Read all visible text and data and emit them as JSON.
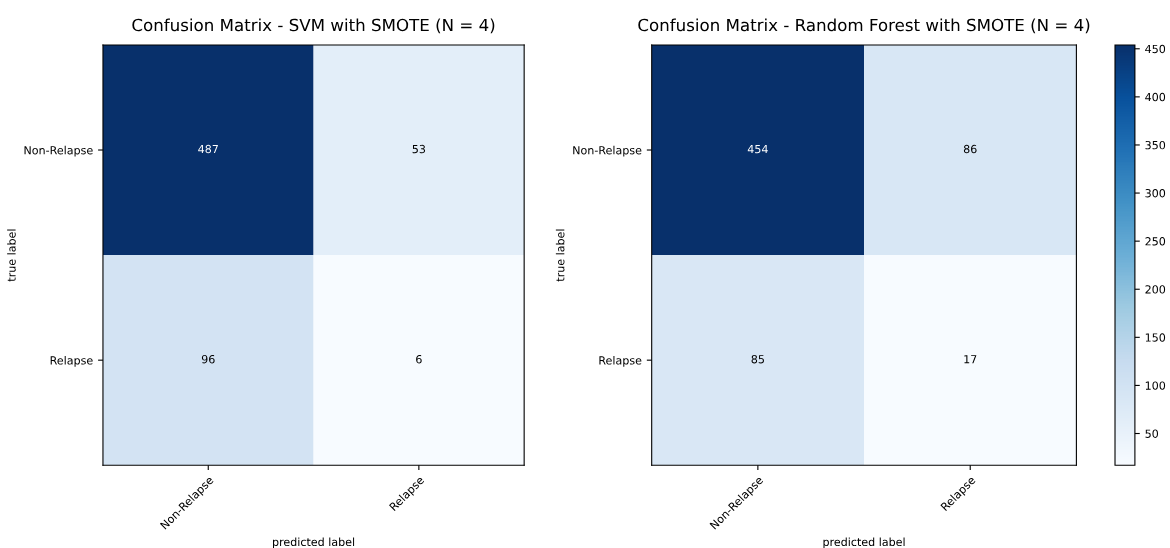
{
  "chart_data": [
    {
      "type": "heatmap",
      "title": "Confusion Matrix - SVM with SMOTE (N = 4)",
      "xlabel": "predicted label",
      "ylabel": "true label",
      "categories": [
        "Non-Relapse",
        "Relapse"
      ],
      "y_categories": [
        "Non-Relapse",
        "Relapse"
      ],
      "cells": [
        [
          487,
          53
        ],
        [
          96,
          6
        ]
      ],
      "data_labels": true
    },
    {
      "type": "heatmap",
      "title": "Confusion Matrix - Random Forest with SMOTE (N = 4)",
      "xlabel": "predicted label",
      "ylabel": "true label",
      "categories": [
        "Non-Relapse",
        "Relapse"
      ],
      "y_categories": [
        "Non-Relapse",
        "Relapse"
      ],
      "cells": [
        [
          454,
          86
        ],
        [
          85,
          17
        ]
      ],
      "data_labels": true,
      "clim": [
        17,
        454
      ],
      "cticks": [
        50,
        100,
        150,
        200,
        250,
        300,
        350,
        400,
        450
      ]
    }
  ]
}
